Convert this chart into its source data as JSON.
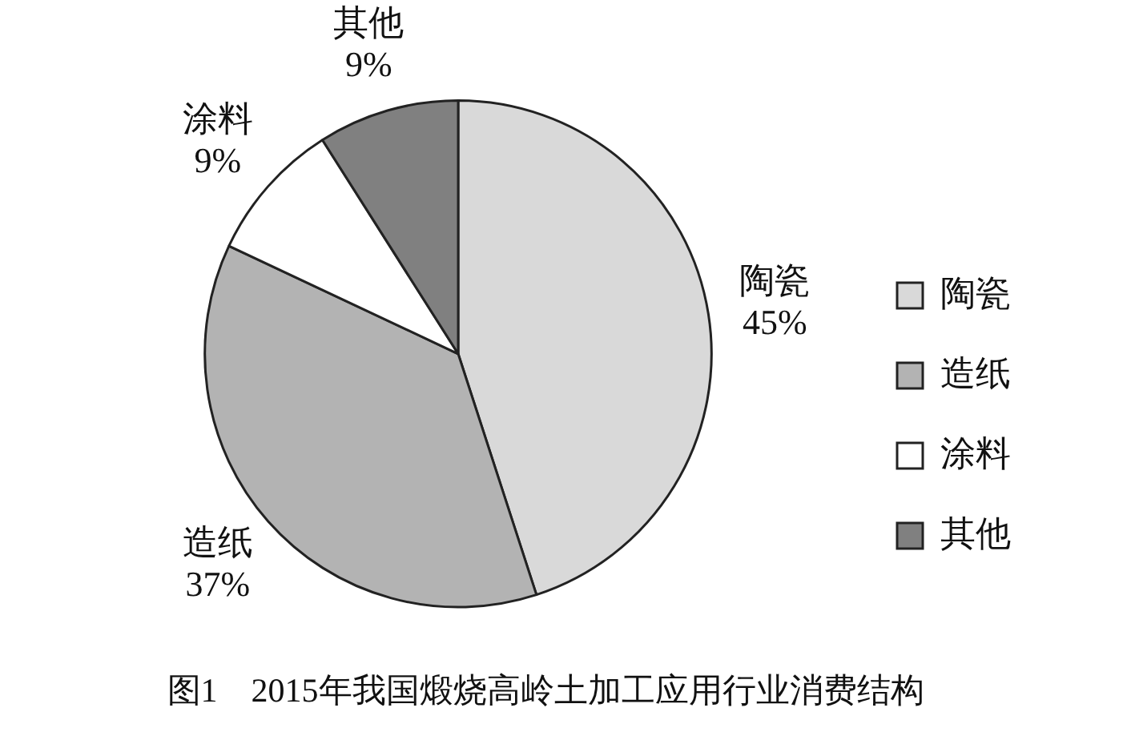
{
  "chart_data": {
    "type": "pie",
    "title": "图1　2015年我国煅烧高岭土加工应用行业消费结构",
    "categories": [
      "陶瓷",
      "造纸",
      "涂料",
      "其他"
    ],
    "values": [
      45,
      37,
      9,
      9
    ],
    "value_labels": [
      "45%",
      "37%",
      "9%",
      "9%"
    ],
    "colors": [
      "#d9d9d9",
      "#b3b3b3",
      "#ffffff",
      "#808080"
    ],
    "legend": "right"
  }
}
